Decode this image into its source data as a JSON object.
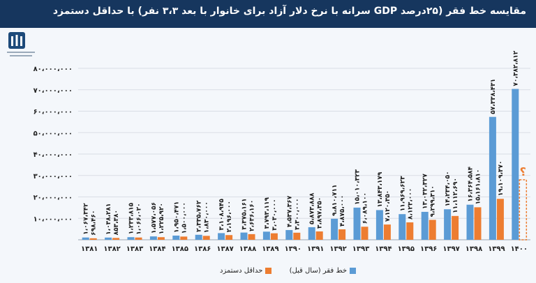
{
  "header": {
    "title": "مقایسه خط فقر (۲۵درصد GDP سرانه با نرخ دلار آزاد برای خانوار با بعد ۳،۳ نفر) با حداقل دستمزد"
  },
  "colors": {
    "header_bg": "#16365e",
    "poverty_line": "#5b9bd5",
    "min_wage": "#ed7d31"
  },
  "chart_data": {
    "type": "bar",
    "categories": [
      "۱۳۸۱",
      "۱۳۸۲",
      "۱۳۸۳",
      "۱۳۸۴",
      "۱۳۸۵",
      "۱۳۸۶",
      "۱۳۸۷",
      "۱۳۸۸",
      "۱۳۸۹",
      "۱۳۹۰",
      "۱۳۹۱",
      "۱۳۹۲",
      "۱۳۹۳",
      "۱۳۹۴",
      "۱۳۹۵",
      "۱۳۹۶",
      "۱۳۹۷",
      "۱۳۹۸",
      "۱۳۹۹",
      "۱۴۰۰"
    ],
    "series": [
      {
        "name": "خط فقر (سال قبل)",
        "values": [
          1067342,
          1038281,
          1233815,
          1577056,
          1950471,
          2335762,
          3108945,
          3375161,
          3793119,
          4537367,
          5873888,
          9810711,
          15010323,
          13843179,
          11969623,
          13032327,
          14234050,
          16364584,
          57338431,
          70382812
        ],
        "labels": [
          "۱،۰۶۷،۳۴۲",
          "۱،۰۳۸،۲۸۱",
          "۱،۲۳۳،۸۱۵",
          "۱،۵۷۷،۰۵۶",
          "۱،۹۵۰،۴۷۱",
          "۲،۳۳۵،۷۶۲",
          "۳،۱۰۸،۹۴۵",
          "۳،۳۷۵،۱۶۱",
          "۳،۷۹۳،۱۱۹",
          "۴،۵۳۷،۳۶۷",
          "۵،۸۷۳،۸۸۸",
          "۹،۸۱۰،۷۱۱",
          "۱۵،۰۱۰،۳۲۳",
          "۱۳،۸۴۳،۱۷۹",
          "۱۱،۹۶۹،۶۲۳",
          "۱۳،۰۳۲،۳۲۷",
          "۱۴،۲۳۴،۰۵۰",
          "۱۶،۳۶۴،۵۸۴",
          "۵۷،۳۳۸،۴۳۱",
          "۷۰،۳۸۲،۸۱۲"
        ]
      },
      {
        "name": "حداقل دستمزد",
        "values": [
          698460,
          853380,
          1066020,
          1225920,
          1500000,
          1830000,
          2196000,
          2636160,
          3030000,
          3300000,
          3897350,
          4875000,
          6089100,
          7120350,
          8123000,
          9299310,
          11112690,
          15161810,
          19109370,
          null
        ],
        "labels": [
          "۶۹۸،۴۶۰",
          "۸۵۳،۳۸۰",
          "۱،۰۶۶،۰۲۰",
          "۱،۲۲۵،۹۲۰",
          "۱،۵۰۰،۰۰۰",
          "۱،۸۳۰،۰۰۰",
          "۲،۱۹۶،۰۰۰",
          "۲،۶۳۶،۱۶۰",
          "۳،۰۳۰،۰۰۰",
          "۳،۳۰۰،۰۰۰",
          "۳،۸۹۷،۳۵۰",
          "۴،۸۷۵،۰۰۰",
          "۶،۰۸۹،۱۰۰",
          "۷،۱۲۰،۳۵۰",
          "۸،۱۲۳،۰۰۰",
          "۹،۲۹۹،۳۱۰",
          "۱۱،۱۱۲،۶۹۰",
          "۱۵،۱۶۱،۸۱۰",
          "۱۹،۱۰۹،۳۷۰",
          ""
        ]
      }
    ],
    "unknown_marker": "؟",
    "yticks": [
      "",
      "۱۰،۰۰۰،۰۰۰",
      "۲۰،۰۰۰،۰۰۰",
      "۳۰،۰۰۰،۰۰۰",
      "۴۰،۰۰۰،۰۰۰",
      "۵۰،۰۰۰،۰۰۰",
      "۶۰،۰۰۰،۰۰۰",
      "۷۰،۰۰۰،۰۰۰",
      "۸۰،۰۰۰،۰۰۰"
    ],
    "ylim": [
      0,
      80000000
    ],
    "grid": true,
    "legend_position": "bottom"
  }
}
